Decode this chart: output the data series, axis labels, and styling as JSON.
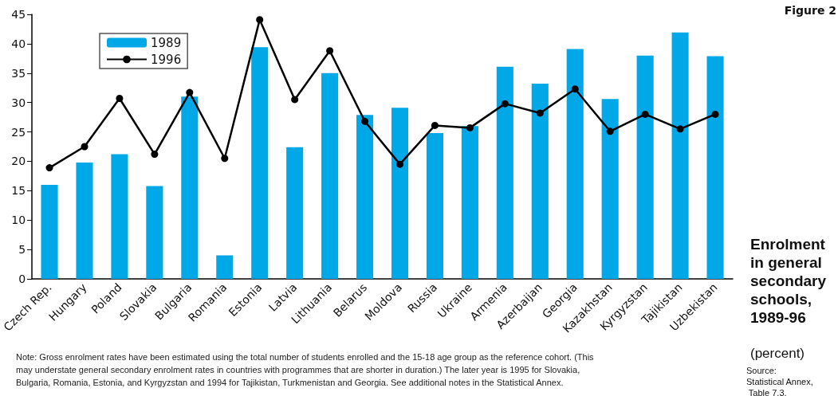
{
  "chart_data": {
    "type": "bar",
    "title": "Enrolment in general secondary schools, 1989-96",
    "subtitle": "(percent)",
    "annotations": [
      "Figure 2",
      "Source: Statistical Annex, Table 7.3.",
      "Note: Gross enrolment rates have been estimated using the total number of students enrolled and the 15-18 age group as the reference cohort. (This may understate general secondary enrolment rates in countries with programmes that are shorter in duration.) The later year is 1995 for Slovakia, Bulgaria, Romania, Estonia, and Kyrgyzstan and 1994 for Tajikistan, Turkmenistan and Georgia. See additional notes in the Statistical Annex."
    ],
    "categories": [
      "Czech Rep.",
      "Hungary",
      "Poland",
      "Slovakia",
      "Bulgaria",
      "Romania",
      "Estonia",
      "Latvia",
      "Lithuania",
      "Belarus",
      "Moldova",
      "Russia",
      "Ukraine",
      "Armenia",
      "Azerbaijan",
      "Georgia",
      "Kazakhstan",
      "Kyrgyzstan",
      "Tajikistan",
      "Uzbekistan"
    ],
    "series": [
      {
        "name": "1989",
        "color": "#00a8e8",
        "values": [
          16.0,
          19.8,
          21.2,
          15.8,
          31.0,
          4.0,
          39.4,
          22.4,
          35.0,
          27.9,
          29.1,
          24.8,
          26.0,
          36.1,
          33.2,
          39.1,
          30.6,
          38.0,
          41.9,
          37.9
        ]
      },
      {
        "name": "1996",
        "type": "line",
        "color": "#000000",
        "marker": "circle",
        "line_style": "solid",
        "values": [
          18.9,
          22.5,
          30.7,
          21.2,
          31.7,
          20.5,
          44.1,
          30.5,
          38.8,
          26.8,
          19.5,
          26.1,
          25.7,
          29.8,
          28.2,
          32.3,
          25.1,
          28.0,
          25.5,
          28.0
        ]
      }
    ],
    "ylim": [
      0,
      45
    ],
    "yticks": [
      0,
      5,
      10,
      15,
      20,
      25,
      30,
      35,
      40,
      45
    ],
    "grid": false,
    "legend": "top left"
  }
}
